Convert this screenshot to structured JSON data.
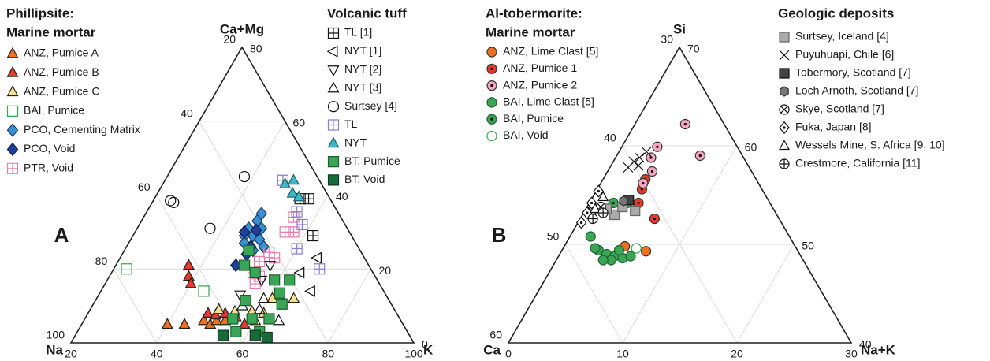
{
  "chart_data": [
    {
      "type": "ternary",
      "panel_label": "A",
      "top_label": "Ca+Mg",
      "left_label": "Na",
      "right_label": "K",
      "xlim": [
        20,
        100
      ],
      "xticks": [
        20,
        40,
        60,
        80,
        100
      ],
      "ylim": [
        0,
        80
      ],
      "yticks": [
        80,
        60,
        40,
        20,
        0
      ],
      "left_lim": [
        20,
        100
      ],
      "left_ticks": [
        20,
        40,
        60,
        80,
        100
      ],
      "grid": true,
      "groups": [
        {
          "title": [
            "Phillipsite:",
            "Marine mortar"
          ],
          "series": [
            {
              "name": "ANZ, Pumice A",
              "marker": "triangle",
              "color": "#f26f21",
              "stroke": "#222222",
              "x": [
                40,
                44,
                48,
                50,
                51,
                53
              ],
              "values": [
                5,
                5,
                6,
                5,
                6,
                6
              ]
            },
            {
              "name": "ANZ, Pumice B",
              "marker": "triangle",
              "color": "#e8392b",
              "stroke": "#222222",
              "x": [
                37,
                38.5,
                40,
                48,
                50,
                52,
                55,
                58
              ],
              "values": [
                21,
                18,
                16,
                8,
                7.5,
                8,
                7,
                5
              ]
            },
            {
              "name": "ANZ, Pumice C",
              "marker": "triangle",
              "color": "#f7e08a",
              "stroke": "#222222",
              "x": [
                50,
                54,
                58,
                61,
                66,
                61,
                60
              ],
              "values": [
                9,
                8.5,
                8.5,
                12,
                12,
                8,
                6
              ]
            },
            {
              "name": "BAI, Pumice",
              "marker": "square",
              "color": "none",
              "stroke": "#3aa655",
              "x": [
                23,
                44
              ],
              "values": [
                20,
                14
              ]
            },
            {
              "name": "PCO, Cementing Matrix",
              "marker": "diamond",
              "color": "#3b8fd0",
              "stroke": "#1a3d6e",
              "x": [
                47,
                47,
                46,
                49,
                48,
                46,
                50,
                49,
                47,
                52,
                50
              ],
              "values": [
                35,
                33,
                31,
                31,
                29,
                29,
                28,
                26,
                27,
                26,
                25
              ]
            },
            {
              "name": "PCO, Void",
              "marker": "diamond",
              "color": "#1f3f99",
              "stroke": "#0d1f4d",
              "x": [
                48,
                49,
                49,
                48,
                45.5
              ],
              "values": [
                21,
                24,
                26,
                30.5,
                30
              ]
            },
            {
              "name": "PTR, Void",
              "marker": "square-grid",
              "color": "none",
              "stroke": "#e57fb0",
              "x": [
                53,
                54,
                56,
                53,
                55,
                55,
                57,
                55,
                55
              ],
              "values": [
                22,
                24.5,
                23,
                19,
                18,
                30,
                30,
                34,
                16
              ]
            }
          ]
        },
        {
          "title": [
            "Volcanic tuff"
          ],
          "series": [
            {
              "name": "TL [1]",
              "marker": "square-grid",
              "color": "none",
              "stroke": "#111111",
              "x": [
                54,
                56,
                62
              ],
              "values": [
                39,
                39,
                29
              ]
            },
            {
              "name": "NYT [1]",
              "marker": "triangle-left",
              "color": "none",
              "stroke": "#111111",
              "x": [
                66,
                69,
                64
              ],
              "values": [
                23,
                14,
                19
              ]
            },
            {
              "name": "NYT [2]",
              "marker": "triangle-down",
              "color": "none",
              "stroke": "#111111",
              "x": [
                56,
                56,
                53
              ],
              "values": [
                21,
                17,
                13
              ]
            },
            {
              "name": "NYT [3]",
              "marker": "triangle",
              "color": "none",
              "stroke": "#111111",
              "x": [
                59,
                65.5,
                59.5,
                55
              ],
              "values": [
                12,
                6,
                9,
                10
              ]
            },
            {
              "name": "Surtsey [4]",
              "marker": "circle",
              "color": "none",
              "stroke": "#111111",
              "x": [
                24,
                25,
                38,
                37
              ],
              "values": [
                38.5,
                38,
                45,
                31
              ]
            },
            {
              "name": "TL",
              "marker": "square-grid",
              "color": "none",
              "stroke": "#8b7fd0",
              "x": [
                47.5,
                55,
                58,
                60,
                68
              ],
              "values": [
                44,
                35.5,
                32,
                25.5,
                20
              ]
            },
            {
              "name": "NYT",
              "marker": "triangle",
              "color": "#3db8c8",
              "stroke": "#1d5f6a",
              "x": [
                48.5,
                50,
                51.5,
                53.5
              ],
              "values": [
                43,
                44,
                40.5,
                39.5
              ]
            },
            {
              "name": "BT, Pumice",
              "marker": "square",
              "color": "#3aa655",
              "stroke": "#1d5f2e",
              "x": [
                49,
                50,
                53.5,
                59,
                62.5,
                62,
                64,
                55,
                54.5,
                59,
                63,
                57,
                62.5
              ],
              "values": [
                25,
                21,
                19,
                17,
                17,
                13.5,
                10.5,
                11.5,
                6.5,
                6.5,
                6.5,
                3,
                3
              ]
            },
            {
              "name": "BT, Void",
              "marker": "square",
              "color": "#1a6b3a",
              "stroke": "#0c3a1e",
              "x": [
                54.5,
                62,
                65
              ],
              "values": [
                2,
                2,
                1.5
              ]
            }
          ]
        }
      ]
    },
    {
      "type": "ternary",
      "panel_label": "B",
      "top_label": "Si",
      "left_label": "Ca",
      "right_label": "Na+K",
      "xlim": [
        0,
        30
      ],
      "xticks": [
        0,
        10,
        20,
        30
      ],
      "ylim": [
        40,
        70
      ],
      "yticks": [
        70,
        60,
        50,
        40
      ],
      "left_lim": [
        30,
        60
      ],
      "left_ticks": [
        30,
        40,
        50,
        60
      ],
      "grid": false,
      "groups": [
        {
          "title": [
            "Al-tobermorite:",
            "Marine mortar"
          ],
          "series": [
            {
              "name": "ANZ, Lime Clast [5]",
              "marker": "circle",
              "color": "#f26f21",
              "stroke": "#333333",
              "x": [
                5.3,
                7.4
              ],
              "values": [
                49.8,
                49.3
              ]
            },
            {
              "name": "ANZ, Pumice 1",
              "marker": "circle-dot",
              "color": "#e8392b",
              "stroke": "#333333",
              "x": [
                3.3,
                3.9,
                3.7,
                4.3,
                6.5
              ],
              "values": [
                54.4,
                55.6,
                56.6,
                54.2,
                52.6
              ]
            },
            {
              "name": "ANZ, Pumice 2",
              "marker": "circle-dot",
              "color": "#f4a7c0",
              "stroke": "#333333",
              "x": [
                4.4,
                7.3,
                3.1,
                3.1,
                3.9,
                3.7
              ],
              "values": [
                62.2,
                59,
                59.9,
                58.8,
                57.4,
                56.2
              ]
            },
            {
              "name": "BAI, Lime Clast [5]",
              "marker": "circle",
              "color": "#3aa655",
              "stroke": "#1d5f2e",
              "x": [
                1.8,
                3.2,
                4.1,
                4.9,
                5.7,
                6.3,
                4.8,
                4.1,
                5,
                2.8
              ],
              "values": [
                50.8,
                49.4,
                49,
                48.8,
                48.6,
                48.8,
                48.4,
                48.4,
                49.4,
                49.6
              ]
            },
            {
              "name": "BAI, Pumice",
              "marker": "circle-dot",
              "color": "#3aa655",
              "stroke": "#1d5f2e",
              "x": [
                3.3,
                2.1
              ],
              "values": [
                54.2,
                54.2
              ]
            },
            {
              "name": "BAI, Void",
              "marker": "circle",
              "color": "#ffffff",
              "stroke": "#3aa655",
              "x": [
                6.4
              ],
              "values": [
                49.6
              ]
            }
          ]
        },
        {
          "title": [
            "Geologic deposits"
          ],
          "series": [
            {
              "name": "Surtsey, Iceland [4]",
              "marker": "square",
              "color": "#aaaaaa",
              "stroke": "#666666",
              "x": [
                2.8,
                3.1,
                4.4,
                1.8
              ],
              "values": [
                53,
                53.8,
                53.4,
                53.6
              ]
            },
            {
              "name": "Puyuhuapi, Chile [6]",
              "marker": "x",
              "color": "none",
              "stroke": "#111111",
              "x": [
                1.6,
                1.8,
                2.1,
                2.4,
                2.4
              ],
              "values": [
                57.8,
                58.4,
                58.8,
                59.4,
                58
              ]
            },
            {
              "name": "Tobermory, Scotland [7]",
              "marker": "square",
              "color": "#444444",
              "stroke": "#111111",
              "x": [
                3.3
              ],
              "values": [
                54.5
              ]
            },
            {
              "name": "Loch Arnoth, Scotland [7]",
              "marker": "hexagon",
              "color": "#777777",
              "stroke": "#333333",
              "x": [
                2.9
              ],
              "values": [
                54.4
              ]
            },
            {
              "name": "Skye, Scotland [7]",
              "marker": "circle-x",
              "color": "#ffffff",
              "stroke": "#111111",
              "x": [
                0.6,
                1.2
              ],
              "values": [
                53.4,
                53.8
              ]
            },
            {
              "name": "Fuka, Japan [8]",
              "marker": "diamond-dot",
              "color": "#ffffff",
              "stroke": "#111111",
              "x": [
                0.2,
                0.2,
                0.3,
                0.3
              ],
              "values": [
                55.4,
                54.2,
                52.2,
                53.2
              ]
            },
            {
              "name": "Wessels Mine, S. Africa [9, 10]",
              "marker": "triangle",
              "color": "#ffffff",
              "stroke": "#111111",
              "x": [
                0.8,
                0.9
              ],
              "values": [
                53.6,
                54.8
              ]
            },
            {
              "name": "Crestmore, California [11]",
              "marker": "circle-plus",
              "color": "#ffffff",
              "stroke": "#111111",
              "x": [
                1.1,
                1.7
              ],
              "values": [
                52.6,
                53.2
              ]
            }
          ]
        }
      ]
    }
  ]
}
